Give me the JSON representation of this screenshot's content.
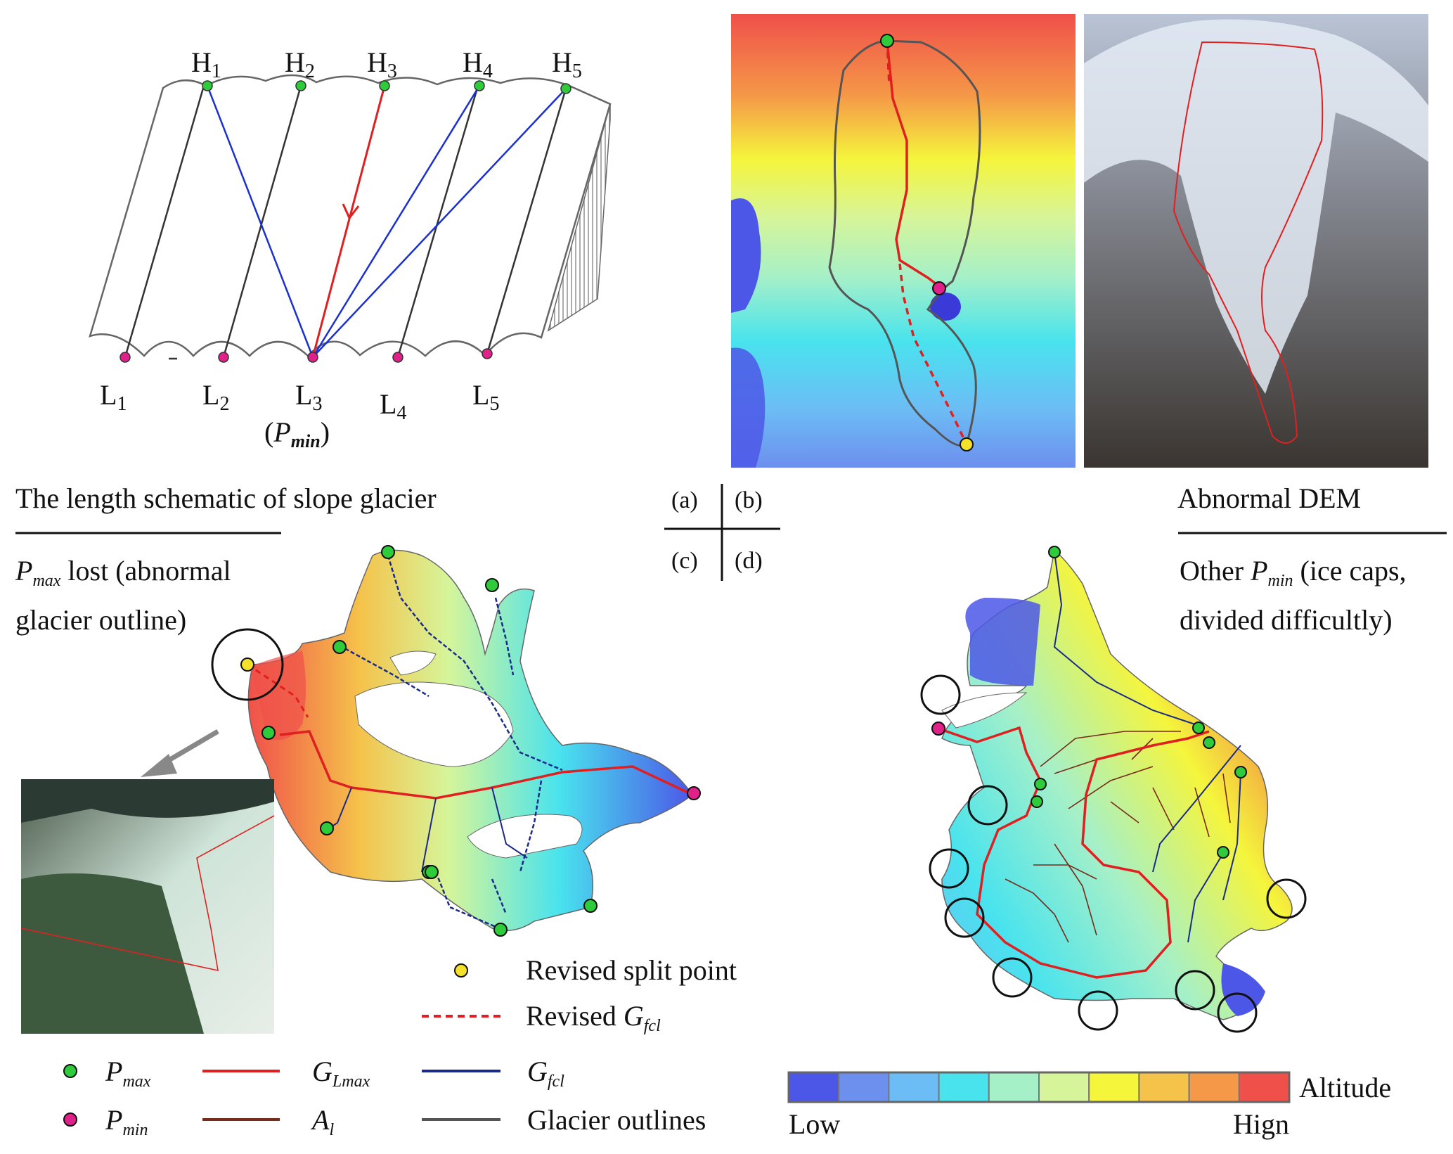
{
  "panel_a": {
    "h_labels": [
      {
        "base": "H",
        "sub": "1"
      },
      {
        "base": "H",
        "sub": "2"
      },
      {
        "base": "H",
        "sub": "3"
      },
      {
        "base": "H",
        "sub": "4"
      },
      {
        "base": "H",
        "sub": "5"
      }
    ],
    "l_labels": [
      {
        "base": "L",
        "sub": "1"
      },
      {
        "base": "L",
        "sub": "2"
      },
      {
        "base": "L",
        "sub": "3"
      },
      {
        "base": "L",
        "sub": "4"
      },
      {
        "base": "L",
        "sub": "5"
      }
    ],
    "pmin_label": {
      "open": "(",
      "base": "P",
      "sub": "min",
      "close": ")"
    },
    "caption": "The length schematic of slope glacier"
  },
  "panel_b": {
    "caption": "Abnormal DEM"
  },
  "panel_c": {
    "caption_line1": {
      "base": "P",
      "sub": "max",
      "rest": " lost  (abnormal"
    },
    "caption_line2": "glacier outline)"
  },
  "panel_d": {
    "caption_line1": {
      "pre": "Other ",
      "base": "P",
      "sub": "min",
      "rest": " (ice caps,"
    },
    "caption_line2": "divided difficultly)"
  },
  "quadrant_labels": [
    "(a)",
    "(b)",
    "(c)",
    "(d)"
  ],
  "legend": {
    "revised_split": "Revised split point",
    "revised_gfcl": {
      "pre": "Revised ",
      "base": "G",
      "sub": "fcl"
    },
    "pmax": {
      "base": "P",
      "sub": "max"
    },
    "pmin": {
      "base": "P",
      "sub": "min"
    },
    "glmax": {
      "base": "G",
      "sub": "Lmax"
    },
    "al": {
      "base": "A",
      "sub": "l"
    },
    "gfcl": {
      "base": "G",
      "sub": "fcl"
    },
    "outlines": "Glacier outlines"
  },
  "colorbar": {
    "title": "Altitude",
    "low": "Low",
    "high": "Hign",
    "colors": [
      "#4c57e8",
      "#6d8fee",
      "#6cbdf5",
      "#49e3ee",
      "#a6f0c8",
      "#d6f59a",
      "#f5f53c",
      "#f5c24a",
      "#f59848",
      "#f0504a"
    ]
  },
  "colors": {
    "pmax": "#2ecc3a",
    "pmin": "#e0218a",
    "split": "#f5e02a",
    "glmax": "#e02020",
    "al": "#7a2a1a",
    "gfcl": "#1a2a8a",
    "outline": "#555555",
    "blue_line": "#1a30d0"
  }
}
